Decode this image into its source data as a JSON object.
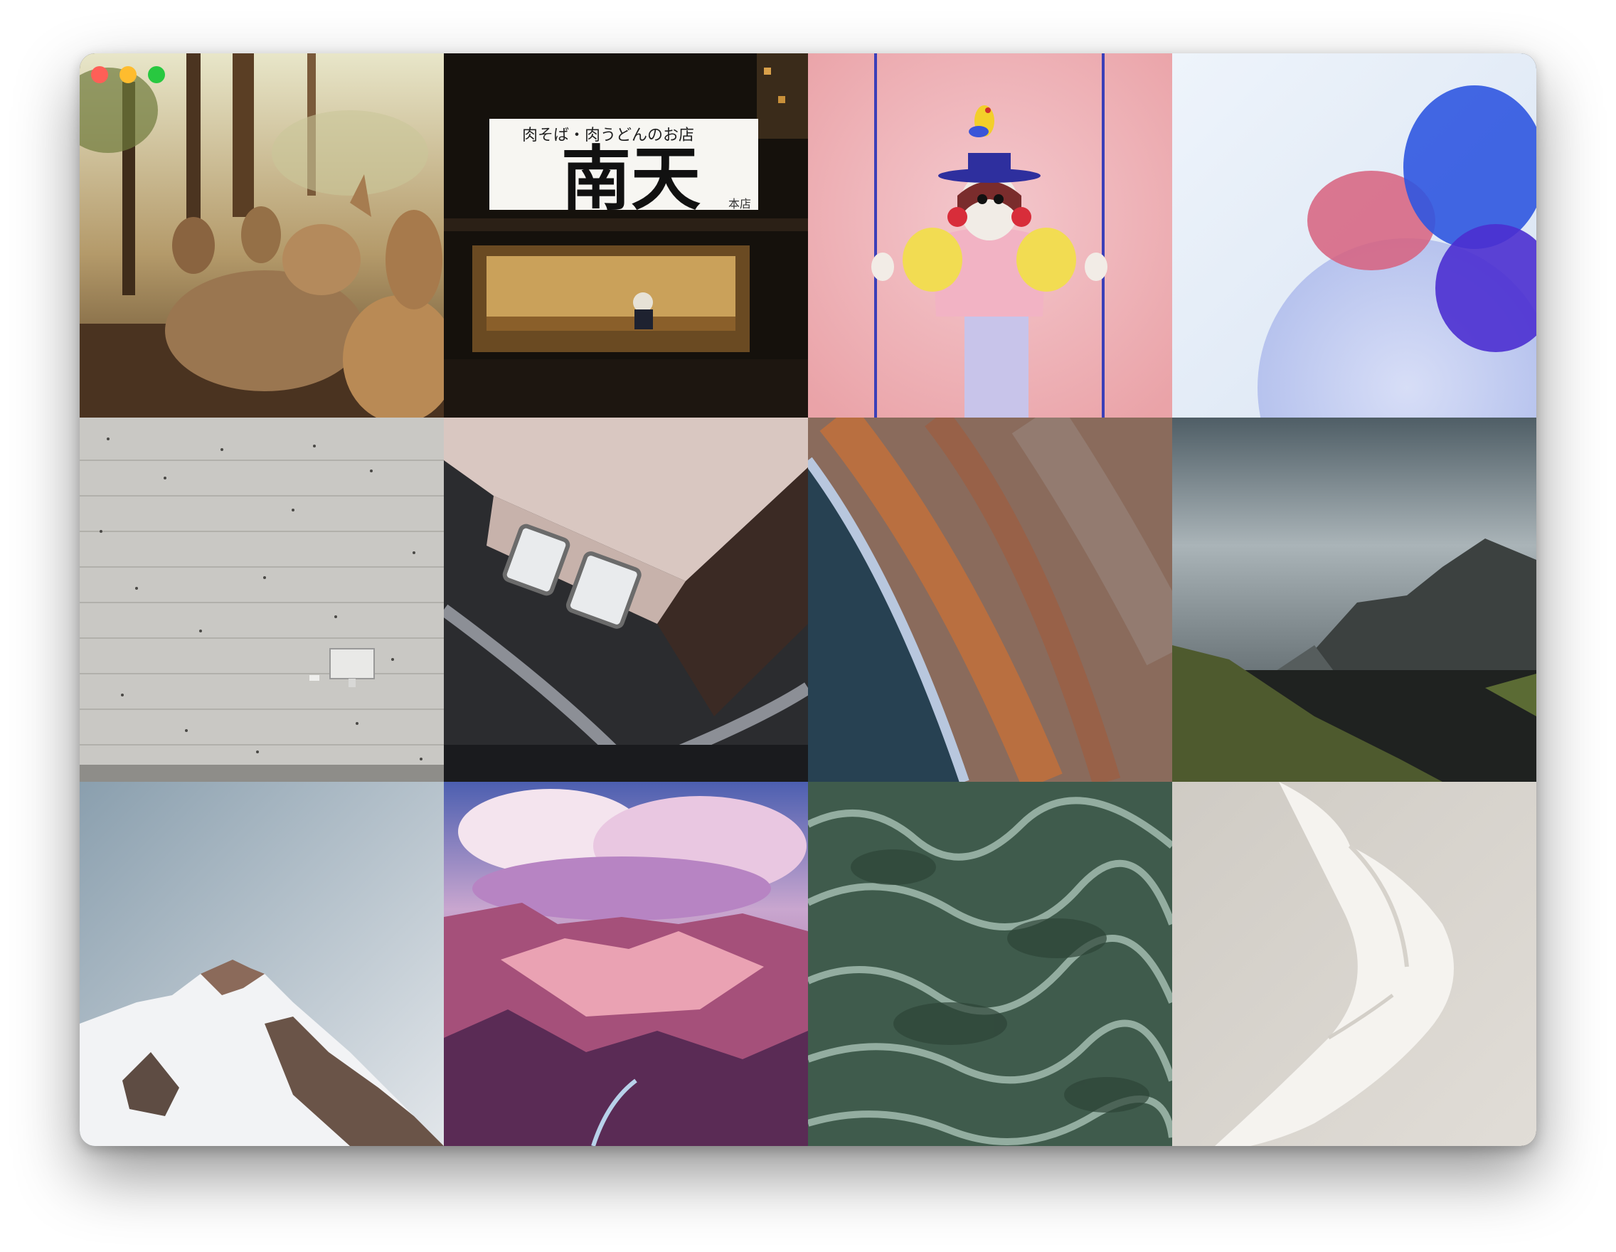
{
  "window": {
    "controls": {
      "close": "#ff5f57",
      "minimize": "#febc2e",
      "zoom": "#28c840"
    }
  },
  "gallery": {
    "tiles": [
      {
        "subject": "deer-photo"
      },
      {
        "subject": "storefront-photo",
        "sign_small": "肉そば・肉うどんのお店",
        "sign_big": "南天",
        "sign_tiny": "本店"
      },
      {
        "subject": "3d-character-illustration"
      },
      {
        "subject": "glass-discs-render"
      },
      {
        "subject": "concrete-wall-photo"
      },
      {
        "subject": "vintage-car-photo"
      },
      {
        "subject": "aerial-coast-photo"
      },
      {
        "subject": "mountain-landscape-photo"
      },
      {
        "subject": "snowy-peak-photo"
      },
      {
        "subject": "canyon-painting"
      },
      {
        "subject": "ocean-waves-photo"
      },
      {
        "subject": "white-fabric-photo"
      }
    ]
  }
}
